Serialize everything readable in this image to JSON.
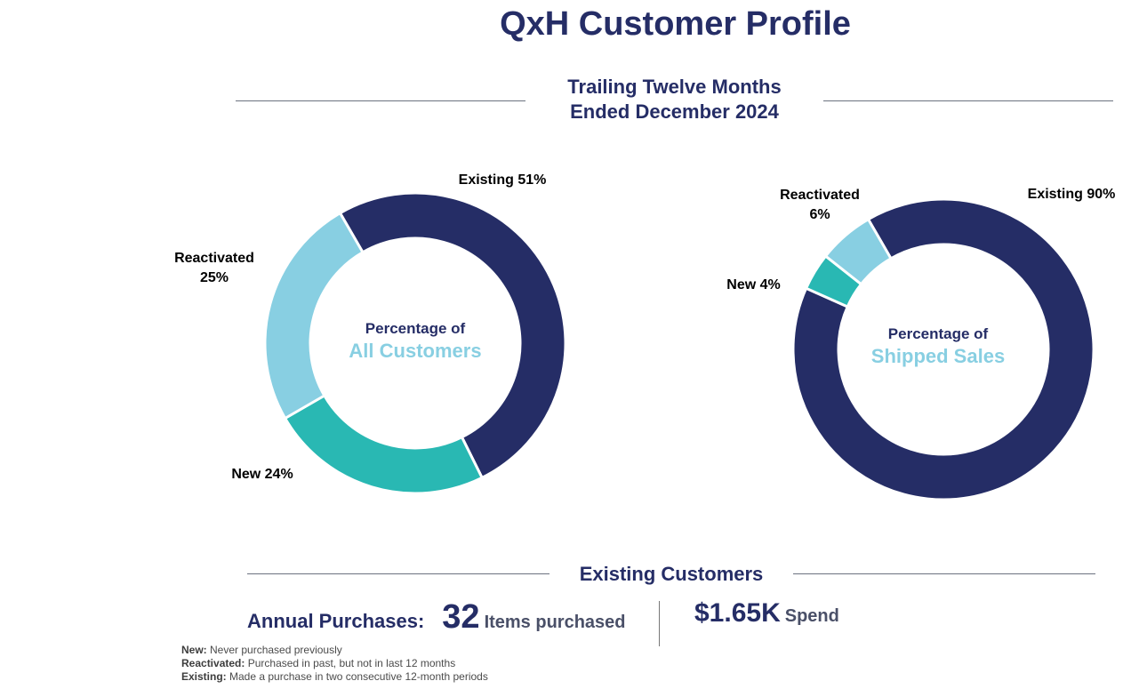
{
  "title": "QxH Customer Profile",
  "period": {
    "line1": "Trailing Twelve Months",
    "line2": "Ended December 2024"
  },
  "colors": {
    "existing": "#252d66",
    "new": "#29b8b3",
    "reactivated": "#88cfe2"
  },
  "chart_data": [
    {
      "type": "pie",
      "title": "Percentage of All Customers",
      "center_line1": "Percentage of",
      "center_line2": "All Customers",
      "slices": [
        {
          "name": "Existing",
          "value": 51,
          "label": "Existing 51%"
        },
        {
          "name": "New",
          "value": 24,
          "label": "New 24%"
        },
        {
          "name": "Reactivated",
          "value": 25,
          "label_line1": "Reactivated",
          "label_line2": "25%"
        }
      ]
    },
    {
      "type": "pie",
      "title": "Percentage of Shipped Sales",
      "center_line1": "Percentage of",
      "center_line2": "Shipped Sales",
      "slices": [
        {
          "name": "Existing",
          "value": 90,
          "label": "Existing 90%"
        },
        {
          "name": "New",
          "value": 4,
          "label": "New 4%"
        },
        {
          "name": "Reactivated",
          "value": 6,
          "label_line1": "Reactivated",
          "label_line2": "6%"
        }
      ]
    }
  ],
  "existing": {
    "heading": "Existing Customers",
    "annual_label": "Annual Purchases:",
    "items_value": "32",
    "items_label": "Items purchased",
    "spend_value": "$1.65K",
    "spend_label": "Spend"
  },
  "definitions": [
    {
      "term": "New:",
      "text": "Never purchased previously"
    },
    {
      "term": "Reactivated:",
      "text": "Purchased in past, but not in last 12 months"
    },
    {
      "term": "Existing:",
      "text": "Made a purchase in two consecutive 12-month periods"
    }
  ]
}
